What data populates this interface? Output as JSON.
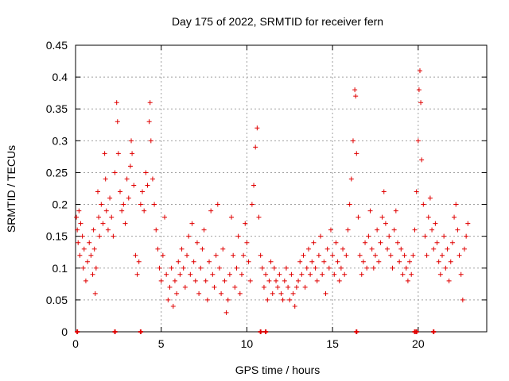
{
  "chart_data": {
    "type": "scatter",
    "title": "Day 175 of 2022, SRMTID for receiver fern",
    "xlabel": "GPS time / hours",
    "ylabel": "SRMTID / TECUs",
    "xlim": [
      0,
      24
    ],
    "ylim": [
      0,
      0.45
    ],
    "xticks": [
      0,
      5,
      10,
      15,
      20
    ],
    "yticks": [
      0,
      0.05,
      0.1,
      0.15,
      0.2,
      0.25,
      0.3,
      0.35,
      0.4,
      0.45
    ],
    "ytick_labels": [
      "0",
      "0.05",
      "0.1",
      "0.15",
      "0.2",
      "0.25",
      "0.3",
      "0.35",
      "0.4",
      "0.45"
    ],
    "xtick_labels": [
      "0",
      "5",
      "10",
      "15",
      "20"
    ],
    "grid": true,
    "marker": "+",
    "color": "#e00000",
    "series": [
      {
        "name": "SRMTID",
        "points": [
          [
            0.05,
            0.18
          ],
          [
            0.1,
            0.16
          ],
          [
            0.15,
            0.14
          ],
          [
            0.2,
            0.19
          ],
          [
            0.25,
            0.12
          ],
          [
            0.3,
            0.17
          ],
          [
            0.4,
            0.15
          ],
          [
            0.45,
            0.1
          ],
          [
            0.5,
            0.13
          ],
          [
            0.6,
            0.08
          ],
          [
            0.7,
            0.11
          ],
          [
            0.8,
            0.14
          ],
          [
            0.9,
            0.12
          ],
          [
            1.0,
            0.09
          ],
          [
            1.05,
            0.16
          ],
          [
            1.1,
            0.13
          ],
          [
            1.15,
            0.06
          ],
          [
            1.2,
            0.1
          ],
          [
            1.3,
            0.22
          ],
          [
            1.35,
            0.18
          ],
          [
            1.4,
            0.15
          ],
          [
            1.5,
            0.2
          ],
          [
            1.6,
            0.17
          ],
          [
            1.7,
            0.28
          ],
          [
            1.75,
            0.24
          ],
          [
            1.8,
            0.19
          ],
          [
            1.9,
            0.16
          ],
          [
            2.0,
            0.21
          ],
          [
            2.1,
            0.18
          ],
          [
            2.2,
            0.15
          ],
          [
            2.3,
            0.25
          ],
          [
            2.4,
            0.36
          ],
          [
            2.45,
            0.33
          ],
          [
            2.5,
            0.28
          ],
          [
            2.6,
            0.22
          ],
          [
            2.7,
            0.19
          ],
          [
            2.8,
            0.2
          ],
          [
            2.9,
            0.17
          ],
          [
            3.0,
            0.24
          ],
          [
            3.1,
            0.21
          ],
          [
            3.2,
            0.26
          ],
          [
            3.25,
            0.3
          ],
          [
            3.3,
            0.28
          ],
          [
            3.4,
            0.23
          ],
          [
            3.5,
            0.12
          ],
          [
            3.6,
            0.09
          ],
          [
            3.7,
            0.11
          ],
          [
            3.8,
            0.2
          ],
          [
            3.9,
            0.22
          ],
          [
            4.0,
            0.19
          ],
          [
            4.1,
            0.25
          ],
          [
            4.2,
            0.23
          ],
          [
            4.3,
            0.33
          ],
          [
            4.35,
            0.36
          ],
          [
            4.4,
            0.3
          ],
          [
            4.5,
            0.24
          ],
          [
            4.6,
            0.2
          ],
          [
            4.7,
            0.16
          ],
          [
            4.8,
            0.13
          ],
          [
            4.9,
            0.1
          ],
          [
            5.0,
            0.08
          ],
          [
            5.1,
            0.12
          ],
          [
            5.2,
            0.18
          ],
          [
            5.3,
            0.09
          ],
          [
            5.4,
            0.05
          ],
          [
            5.5,
            0.07
          ],
          [
            5.6,
            0.1
          ],
          [
            5.7,
            0.04
          ],
          [
            5.8,
            0.08
          ],
          [
            5.9,
            0.06
          ],
          [
            6.0,
            0.11
          ],
          [
            6.1,
            0.09
          ],
          [
            6.2,
            0.13
          ],
          [
            6.3,
            0.1
          ],
          [
            6.4,
            0.07
          ],
          [
            6.5,
            0.12
          ],
          [
            6.6,
            0.15
          ],
          [
            6.7,
            0.09
          ],
          [
            6.8,
            0.17
          ],
          [
            6.9,
            0.11
          ],
          [
            7.0,
            0.08
          ],
          [
            7.1,
            0.14
          ],
          [
            7.2,
            0.06
          ],
          [
            7.3,
            0.1
          ],
          [
            7.4,
            0.13
          ],
          [
            7.5,
            0.16
          ],
          [
            7.6,
            0.08
          ],
          [
            7.7,
            0.05
          ],
          [
            7.8,
            0.11
          ],
          [
            7.9,
            0.19
          ],
          [
            8.0,
            0.09
          ],
          [
            8.1,
            0.07
          ],
          [
            8.2,
            0.12
          ],
          [
            8.3,
            0.2
          ],
          [
            8.4,
            0.1
          ],
          [
            8.5,
            0.06
          ],
          [
            8.6,
            0.13
          ],
          [
            8.7,
            0.08
          ],
          [
            8.8,
            0.03
          ],
          [
            8.9,
            0.05
          ],
          [
            9.0,
            0.09
          ],
          [
            9.1,
            0.18
          ],
          [
            9.2,
            0.12
          ],
          [
            9.3,
            0.07
          ],
          [
            9.4,
            0.1
          ],
          [
            9.5,
            0.15
          ],
          [
            9.6,
            0.06
          ],
          [
            9.7,
            0.09
          ],
          [
            9.8,
            0.12
          ],
          [
            9.9,
            0.17
          ],
          [
            10.0,
            0.14
          ],
          [
            10.1,
            0.11
          ],
          [
            10.2,
            0.08
          ],
          [
            10.3,
            0.2
          ],
          [
            10.4,
            0.23
          ],
          [
            10.5,
            0.29
          ],
          [
            10.6,
            0.32
          ],
          [
            10.7,
            0.18
          ],
          [
            10.8,
            0.12
          ],
          [
            10.9,
            0.1
          ],
          [
            11.0,
            0.07
          ],
          [
            11.1,
            0.09
          ],
          [
            11.2,
            0.05
          ],
          [
            11.3,
            0.08
          ],
          [
            11.4,
            0.11
          ],
          [
            11.5,
            0.06
          ],
          [
            11.6,
            0.1
          ],
          [
            11.7,
            0.08
          ],
          [
            11.8,
            0.07
          ],
          [
            11.9,
            0.09
          ],
          [
            12.0,
            0.06
          ],
          [
            12.1,
            0.05
          ],
          [
            12.2,
            0.08
          ],
          [
            12.3,
            0.1
          ],
          [
            12.4,
            0.07
          ],
          [
            12.5,
            0.05
          ],
          [
            12.6,
            0.09
          ],
          [
            12.7,
            0.06
          ],
          [
            12.8,
            0.04
          ],
          [
            12.9,
            0.07
          ],
          [
            13.0,
            0.08
          ],
          [
            13.1,
            0.11
          ],
          [
            13.2,
            0.09
          ],
          [
            13.3,
            0.12
          ],
          [
            13.4,
            0.07
          ],
          [
            13.5,
            0.1
          ],
          [
            13.6,
            0.13
          ],
          [
            13.7,
            0.09
          ],
          [
            13.8,
            0.11
          ],
          [
            13.9,
            0.14
          ],
          [
            14.0,
            0.1
          ],
          [
            14.1,
            0.08
          ],
          [
            14.2,
            0.12
          ],
          [
            14.3,
            0.15
          ],
          [
            14.4,
            0.09
          ],
          [
            14.5,
            0.11
          ],
          [
            14.6,
            0.06
          ],
          [
            14.7,
            0.13
          ],
          [
            14.8,
            0.1
          ],
          [
            14.9,
            0.16
          ],
          [
            15.0,
            0.12
          ],
          [
            15.1,
            0.09
          ],
          [
            15.2,
            0.14
          ],
          [
            15.3,
            0.11
          ],
          [
            15.4,
            0.08
          ],
          [
            15.5,
            0.1
          ],
          [
            15.6,
            0.13
          ],
          [
            15.7,
            0.09
          ],
          [
            15.8,
            0.12
          ],
          [
            15.9,
            0.16
          ],
          [
            16.0,
            0.2
          ],
          [
            16.1,
            0.24
          ],
          [
            16.2,
            0.3
          ],
          [
            16.3,
            0.38
          ],
          [
            16.35,
            0.37
          ],
          [
            16.4,
            0.28
          ],
          [
            16.5,
            0.18
          ],
          [
            16.6,
            0.12
          ],
          [
            16.7,
            0.09
          ],
          [
            16.8,
            0.11
          ],
          [
            16.9,
            0.14
          ],
          [
            17.0,
            0.1
          ],
          [
            17.1,
            0.15
          ],
          [
            17.2,
            0.19
          ],
          [
            17.3,
            0.13
          ],
          [
            17.4,
            0.1
          ],
          [
            17.5,
            0.12
          ],
          [
            17.6,
            0.16
          ],
          [
            17.7,
            0.11
          ],
          [
            17.8,
            0.14
          ],
          [
            17.9,
            0.18
          ],
          [
            18.0,
            0.22
          ],
          [
            18.1,
            0.17
          ],
          [
            18.2,
            0.13
          ],
          [
            18.3,
            0.15
          ],
          [
            18.4,
            0.12
          ],
          [
            18.5,
            0.1
          ],
          [
            18.6,
            0.16
          ],
          [
            18.7,
            0.19
          ],
          [
            18.8,
            0.14
          ],
          [
            18.9,
            0.11
          ],
          [
            19.0,
            0.13
          ],
          [
            19.1,
            0.09
          ],
          [
            19.2,
            0.12
          ],
          [
            19.3,
            0.1
          ],
          [
            19.4,
            0.08
          ],
          [
            19.5,
            0.11
          ],
          [
            19.6,
            0.09
          ],
          [
            19.7,
            0.12
          ],
          [
            19.8,
            0.16
          ],
          [
            19.9,
            0.22
          ],
          [
            20.0,
            0.3
          ],
          [
            20.05,
            0.38
          ],
          [
            20.1,
            0.41
          ],
          [
            20.15,
            0.36
          ],
          [
            20.2,
            0.27
          ],
          [
            20.3,
            0.2
          ],
          [
            20.4,
            0.15
          ],
          [
            20.5,
            0.12
          ],
          [
            20.6,
            0.18
          ],
          [
            20.7,
            0.21
          ],
          [
            20.8,
            0.16
          ],
          [
            20.9,
            0.13
          ],
          [
            21.0,
            0.17
          ],
          [
            21.1,
            0.14
          ],
          [
            21.2,
            0.11
          ],
          [
            21.3,
            0.09
          ],
          [
            21.4,
            0.12
          ],
          [
            21.5,
            0.15
          ],
          [
            21.6,
            0.1
          ],
          [
            21.7,
            0.13
          ],
          [
            21.8,
            0.08
          ],
          [
            21.9,
            0.11
          ],
          [
            22.0,
            0.14
          ],
          [
            22.1,
            0.18
          ],
          [
            22.2,
            0.2
          ],
          [
            22.3,
            0.16
          ],
          [
            22.4,
            0.12
          ],
          [
            22.5,
            0.09
          ],
          [
            22.6,
            0.05
          ],
          [
            22.7,
            0.13
          ],
          [
            22.8,
            0.15
          ],
          [
            22.9,
            0.17
          ]
        ]
      }
    ],
    "zero_markers_x": [
      0.1,
      2.3,
      3.8,
      10.8,
      11.1,
      16.4,
      19.8,
      19.9,
      20.9
    ]
  }
}
